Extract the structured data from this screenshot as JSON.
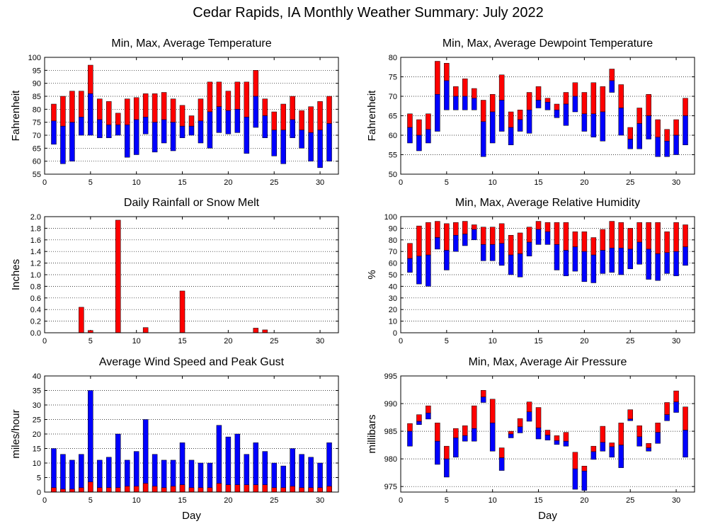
{
  "page": {
    "title": "Cedar Rapids, IA Monthly Weather Summary: July 2022"
  },
  "chart_data": [
    {
      "id": "temperature",
      "type": "bar",
      "title": "Min, Max, Average Temperature",
      "xlabel": "",
      "ylabel": "Fahrenheit",
      "xlim": [
        0,
        32
      ],
      "ylim": [
        55,
        100
      ],
      "xticks": [
        0,
        5,
        10,
        15,
        20,
        25,
        30
      ],
      "yticks": [
        55,
        60,
        65,
        70,
        75,
        80,
        85,
        90,
        95,
        100
      ],
      "grid": true,
      "legend": "none",
      "colors": {
        "upper": "#ff0000",
        "lower": "#0000ff"
      },
      "x": [
        1,
        2,
        3,
        4,
        5,
        6,
        7,
        8,
        9,
        10,
        11,
        12,
        13,
        14,
        15,
        16,
        17,
        18,
        19,
        20,
        21,
        22,
        23,
        24,
        25,
        26,
        27,
        28,
        29,
        30,
        31
      ],
      "series": [
        {
          "key": "min",
          "values": [
            66.5,
            59,
            60,
            70,
            70,
            69,
            69,
            70,
            61.5,
            62.5,
            70.5,
            63.5,
            67,
            64,
            69,
            70,
            67,
            65,
            71,
            70.5,
            71,
            63,
            73,
            69,
            62,
            59,
            69,
            65,
            60,
            57.5,
            60
          ]
        },
        {
          "key": "avg",
          "values": [
            75.5,
            73.5,
            75,
            77,
            86,
            76,
            74,
            74,
            74,
            76,
            77,
            75,
            76,
            75,
            73.5,
            73.5,
            75.5,
            79,
            81,
            79.5,
            80,
            77,
            85,
            77.5,
            72,
            72,
            76,
            72,
            71,
            72,
            74.5
          ]
        },
        {
          "key": "max",
          "values": [
            82,
            85,
            87,
            87,
            97,
            84,
            83,
            78.5,
            84,
            84.5,
            86,
            86,
            86.5,
            84,
            81.5,
            77.5,
            84,
            90.5,
            90.5,
            87,
            90.5,
            90.5,
            95,
            84,
            79,
            82,
            85,
            79.5,
            81,
            83,
            85
          ]
        }
      ]
    },
    {
      "id": "dewpoint",
      "type": "bar",
      "title": "Min, Max, Average Dewpoint Temperature",
      "xlabel": "",
      "ylabel": "Fahrenheit",
      "xlim": [
        0,
        32
      ],
      "ylim": [
        50,
        80
      ],
      "xticks": [
        0,
        5,
        10,
        15,
        20,
        25,
        30
      ],
      "yticks": [
        50,
        55,
        60,
        65,
        70,
        75,
        80
      ],
      "grid": true,
      "legend": "none",
      "colors": {
        "upper": "#ff0000",
        "lower": "#0000ff"
      },
      "x": [
        1,
        2,
        3,
        4,
        5,
        6,
        7,
        8,
        9,
        10,
        11,
        12,
        13,
        14,
        15,
        16,
        17,
        18,
        19,
        20,
        21,
        22,
        23,
        24,
        25,
        26,
        27,
        28,
        29,
        30,
        31
      ],
      "series": [
        {
          "key": "min",
          "values": [
            58,
            56,
            58,
            61,
            66.5,
            66.5,
            66.5,
            66.5,
            54.5,
            58,
            61,
            57.5,
            61,
            60.5,
            67,
            66.5,
            64.5,
            62.5,
            66,
            61,
            59.5,
            58.5,
            71,
            60,
            56.5,
            56.5,
            59,
            54.5,
            54.5,
            55,
            57.5
          ]
        },
        {
          "key": "avg",
          "values": [
            62,
            60,
            61.5,
            70.5,
            74,
            70,
            70,
            69.5,
            63.5,
            66,
            69,
            62,
            64,
            66.5,
            69,
            68.5,
            66.5,
            68,
            70,
            65.5,
            65.5,
            66,
            74,
            67,
            59,
            63,
            65,
            59.5,
            58.5,
            60,
            65
          ]
        },
        {
          "key": "max",
          "values": [
            65.5,
            64,
            65.5,
            79,
            78.5,
            72.5,
            74.5,
            72,
            69,
            70.5,
            75.5,
            66,
            66.5,
            71,
            72.5,
            69.5,
            68,
            71,
            73.5,
            71,
            73.5,
            72.5,
            77,
            73,
            62,
            67,
            70.5,
            64,
            61.5,
            64,
            69.5
          ]
        }
      ]
    },
    {
      "id": "rainfall",
      "type": "bar",
      "title": "Daily Rainfall or Snow Melt",
      "xlabel": "",
      "ylabel": "Inches",
      "xlim": [
        0,
        32
      ],
      "ylim": [
        0,
        2.0
      ],
      "xticks": [
        0,
        5,
        10,
        15,
        20,
        25,
        30
      ],
      "yticks": [
        0.0,
        0.2,
        0.4,
        0.6,
        0.8,
        1.0,
        1.2,
        1.4,
        1.6,
        1.8,
        2.0
      ],
      "ytick_labels": [
        "0.0",
        "0.2",
        "0.4",
        "0.6",
        "0.8",
        "1.0",
        "1.2",
        "1.4",
        "1.6",
        "1.8",
        "2.0"
      ],
      "grid": true,
      "legend": "none",
      "colors": {
        "bar": "#ff0000"
      },
      "x": [
        4,
        5,
        8,
        11,
        15,
        23,
        24
      ],
      "values": [
        0.44,
        0.04,
        1.94,
        0.09,
        0.72,
        0.08,
        0.05
      ]
    },
    {
      "id": "humidity",
      "type": "bar",
      "title": "Min, Max, Average Relative Humidity",
      "xlabel": "",
      "ylabel": "%",
      "xlim": [
        0,
        32
      ],
      "ylim": [
        0,
        100
      ],
      "xticks": [
        0,
        5,
        10,
        15,
        20,
        25,
        30
      ],
      "yticks": [
        0,
        10,
        20,
        30,
        40,
        50,
        60,
        70,
        80,
        90,
        100
      ],
      "grid": true,
      "legend": "none",
      "colors": {
        "upper": "#ff0000",
        "lower": "#0000ff"
      },
      "x": [
        1,
        2,
        3,
        4,
        5,
        6,
        7,
        8,
        9,
        10,
        11,
        12,
        13,
        14,
        15,
        16,
        17,
        18,
        19,
        20,
        21,
        22,
        23,
        24,
        25,
        26,
        27,
        28,
        29,
        30,
        31
      ],
      "series": [
        {
          "key": "min",
          "values": [
            52,
            42,
            40,
            72,
            54,
            70,
            75,
            80,
            62,
            62,
            58,
            50,
            48,
            66,
            76,
            76,
            54,
            49,
            53,
            44,
            43,
            51,
            52,
            50,
            55,
            59,
            46,
            45,
            51,
            49,
            58
          ]
        },
        {
          "key": "avg",
          "values": [
            64,
            66,
            67,
            82,
            71,
            84,
            85,
            89,
            76,
            76,
            77,
            67,
            68,
            78,
            89,
            87,
            76,
            71,
            74,
            70,
            67,
            71,
            73,
            73,
            72,
            78,
            72,
            68,
            69,
            70,
            74
          ]
        },
        {
          "key": "max",
          "values": [
            77,
            92,
            95,
            96,
            94,
            95,
            96,
            93,
            91,
            91,
            94,
            84,
            86,
            91,
            96,
            95,
            95,
            95,
            87,
            87,
            82,
            89,
            96,
            95,
            90,
            95,
            95,
            95,
            87,
            95,
            93
          ]
        }
      ]
    },
    {
      "id": "wind",
      "type": "bar",
      "title": "Average Wind Speed and Peak Gust",
      "xlabel": "Day",
      "ylabel": "miles/hour",
      "xlim": [
        0,
        32
      ],
      "ylim": [
        0,
        40
      ],
      "xticks": [
        0,
        5,
        10,
        15,
        20,
        25,
        30
      ],
      "yticks": [
        0,
        5,
        10,
        15,
        20,
        25,
        30,
        35,
        40
      ],
      "grid": true,
      "legend": "none",
      "colors": {
        "gust": "#0000ff",
        "average": "#ff0000"
      },
      "x": [
        1,
        2,
        3,
        4,
        5,
        6,
        7,
        8,
        9,
        10,
        11,
        12,
        13,
        14,
        15,
        16,
        17,
        18,
        19,
        20,
        21,
        22,
        23,
        24,
        25,
        26,
        27,
        28,
        29,
        30,
        31
      ],
      "series": [
        {
          "key": "peak_gust",
          "values": [
            15,
            13,
            11,
            13,
            35,
            11,
            12,
            20,
            11,
            14,
            25,
            13,
            11,
            11,
            17,
            11,
            10,
            10,
            23,
            19,
            20,
            13,
            17,
            14,
            10,
            9,
            15,
            13,
            12,
            10,
            17
          ]
        },
        {
          "key": "average",
          "values": [
            1.5,
            1,
            1,
            1.5,
            3.5,
            1.5,
            1.5,
            1.5,
            2,
            2,
            3,
            2,
            1.5,
            2,
            2.5,
            1.5,
            1.5,
            1.5,
            3,
            2.5,
            2.5,
            2.5,
            2.5,
            2.5,
            1.5,
            1.5,
            2,
            1.5,
            1.5,
            1.5,
            2
          ]
        }
      ]
    },
    {
      "id": "pressure",
      "type": "bar",
      "title": "Min, Max, Average Air Pressure",
      "xlabel": "Day",
      "ylabel": "millibars",
      "xlim": [
        0,
        32
      ],
      "ylim": [
        974,
        995
      ],
      "xticks": [
        0,
        5,
        10,
        15,
        20,
        25,
        30
      ],
      "yticks": [
        975,
        980,
        985,
        990,
        995
      ],
      "grid": true,
      "legend": "none",
      "colors": {
        "upper": "#ff0000",
        "lower": "#0000ff"
      },
      "x": [
        1,
        2,
        3,
        4,
        5,
        6,
        7,
        8,
        9,
        10,
        11,
        12,
        13,
        14,
        15,
        16,
        17,
        18,
        19,
        20,
        21,
        22,
        23,
        24,
        25,
        26,
        27,
        28,
        29,
        30,
        31
      ],
      "series": [
        {
          "key": "min",
          "values": [
            982.3,
            986.2,
            987.2,
            979,
            976.7,
            980.3,
            983.2,
            983.2,
            990.2,
            981.4,
            977.9,
            983.8,
            984.7,
            986.8,
            983.6,
            983.4,
            982.6,
            982.3,
            974.5,
            974.3,
            979.9,
            981.4,
            980.3,
            978.4,
            986.9,
            982.3,
            981.4,
            982.8,
            986.9,
            988.4,
            980.3
          ]
        },
        {
          "key": "avg",
          "values": [
            985,
            986.8,
            988.3,
            983.2,
            980,
            983.8,
            984.2,
            985.5,
            991.2,
            986.5,
            980.2,
            984.5,
            985.8,
            988.5,
            985.6,
            984.3,
            983.3,
            983.2,
            978.2,
            977.8,
            981.3,
            983,
            982.2,
            982.5,
            987.2,
            984,
            982,
            984.8,
            988,
            990.3,
            985.2
          ]
        },
        {
          "key": "max",
          "values": [
            986.4,
            988,
            989.6,
            986.5,
            982.3,
            985.5,
            986,
            989.6,
            992.4,
            990.8,
            982,
            985,
            987.3,
            990.3,
            989.3,
            985.2,
            984.2,
            984.8,
            981.2,
            978.7,
            982.3,
            985.9,
            982.9,
            986.5,
            988.9,
            986,
            982.8,
            986.5,
            990.2,
            992.3,
            989.4
          ]
        }
      ]
    }
  ]
}
